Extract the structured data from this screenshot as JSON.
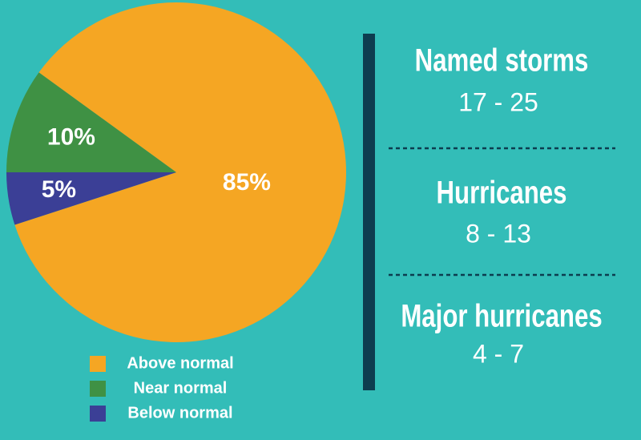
{
  "chart_data": {
    "type": "pie",
    "categories": [
      "Above normal",
      "Near normal",
      "Below normal"
    ],
    "values": [
      85,
      10,
      5
    ],
    "value_labels": [
      "85%",
      "10%",
      "5%"
    ],
    "colors": [
      "#f5a623",
      "#3f9144",
      "#3b3f96"
    ]
  },
  "stats": [
    {
      "title": "Named storms",
      "range": "17 - 25"
    },
    {
      "title": "Hurricanes",
      "range": "8 - 13"
    },
    {
      "title": "Major hurricanes",
      "range": "4 - 7"
    }
  ]
}
